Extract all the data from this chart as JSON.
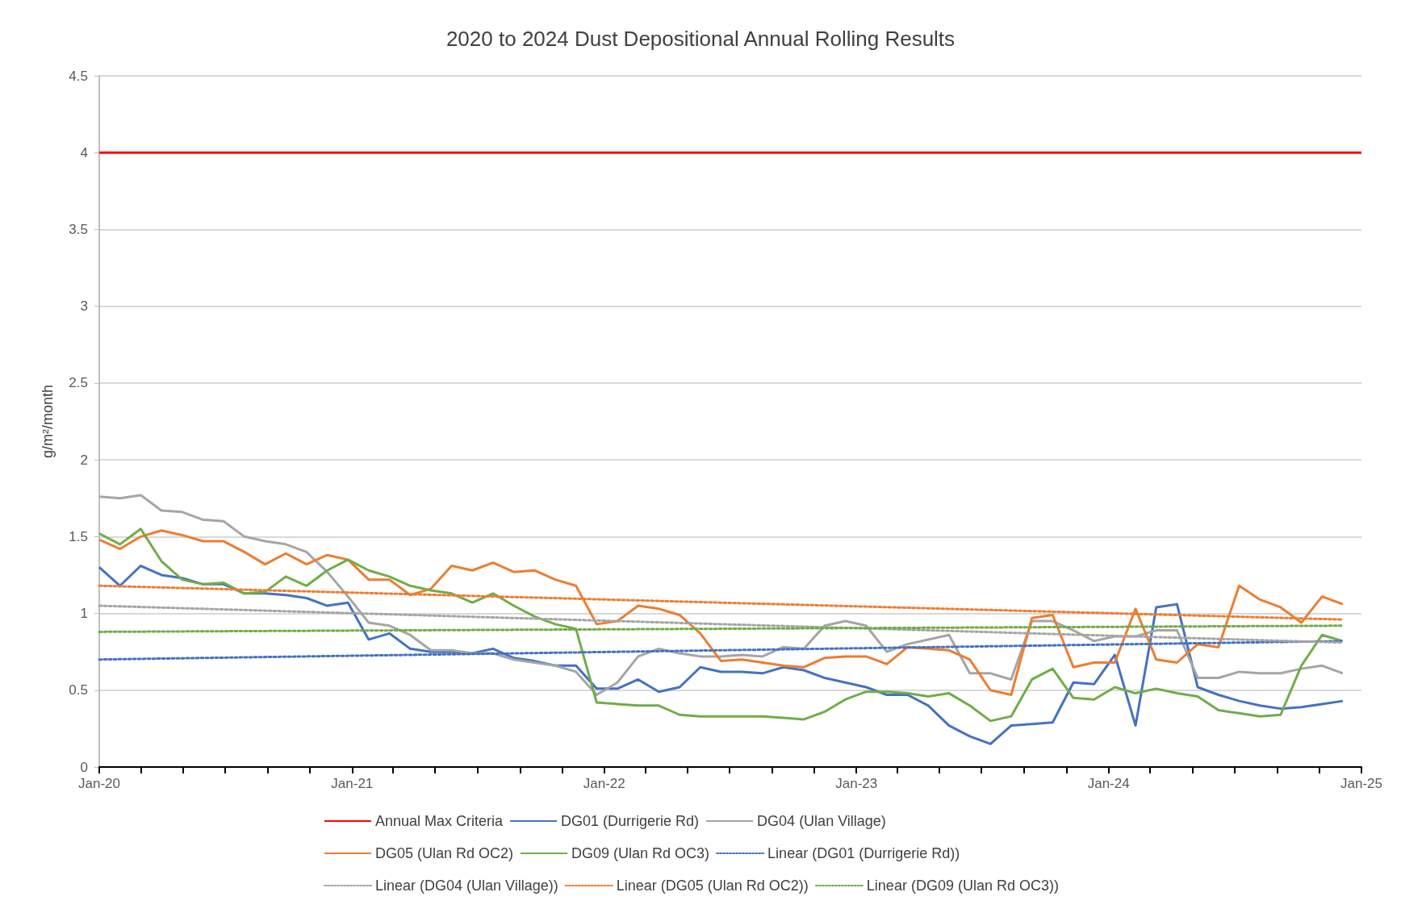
{
  "chart_data": {
    "type": "line",
    "title": "2020 to 2024 Dust Depositional Annual Rolling Results",
    "ylabel": "g/m²/month",
    "x": [
      "2020-01-01",
      "2020-01-31",
      "2020-03-01",
      "2020-03-31",
      "2020-04-30",
      "2020-05-30",
      "2020-06-29",
      "2020-07-29",
      "2020-08-28",
      "2020-09-27",
      "2020-10-27",
      "2020-11-26",
      "2020-12-26",
      "2021-01-25",
      "2021-02-24",
      "2021-03-26",
      "2021-04-25",
      "2021-05-25",
      "2021-06-24",
      "2021-07-24",
      "2021-08-23",
      "2021-09-22",
      "2021-10-22",
      "2021-11-21",
      "2021-12-21",
      "2022-01-20",
      "2022-02-19",
      "2022-03-21",
      "2022-04-20",
      "2022-05-20",
      "2022-06-19",
      "2022-07-19",
      "2022-08-18",
      "2022-09-17",
      "2022-10-17",
      "2022-11-16",
      "2022-12-16",
      "2023-01-15",
      "2023-02-14",
      "2023-03-16",
      "2023-04-15",
      "2023-05-15",
      "2023-06-14",
      "2023-07-14",
      "2023-08-13",
      "2023-09-12",
      "2023-10-12",
      "2023-11-11",
      "2023-12-11",
      "2024-01-10",
      "2024-02-09",
      "2024-03-10",
      "2024-04-09",
      "2024-05-09",
      "2024-06-08",
      "2024-07-08",
      "2024-08-07",
      "2024-09-06",
      "2024-10-06",
      "2024-11-05",
      "2024-12-05"
    ],
    "series": [
      {
        "name": "Annual Max Criteria",
        "color": "#ff0000",
        "x": [
          "2020-01-01",
          "2025-01-01"
        ],
        "values": [
          4,
          4
        ]
      },
      {
        "name": "DG01 (Durrigerie Rd)",
        "color": "#4472c4",
        "values": [
          1.3,
          1.18,
          1.31,
          1.25,
          1.23,
          1.19,
          1.19,
          1.13,
          1.13,
          1.12,
          1.1,
          1.05,
          1.07,
          0.83,
          0.87,
          0.77,
          0.75,
          0.75,
          0.74,
          0.77,
          0.71,
          0.69,
          0.66,
          0.66,
          0.51,
          0.51,
          0.57,
          0.49,
          0.52,
          0.65,
          0.62,
          0.62,
          0.61,
          0.65,
          0.63,
          0.58,
          0.55,
          0.52,
          0.47,
          0.47,
          0.4,
          0.27,
          0.2,
          0.15,
          0.27,
          0.28,
          0.29,
          0.55,
          0.54,
          0.73,
          0.27,
          1.04,
          1.06,
          0.52,
          0.47,
          0.43,
          0.4,
          0.38,
          0.39,
          0.41,
          0.43
        ]
      },
      {
        "name": "DG04 (Ulan Village)",
        "color": "#a5a5a5",
        "values": [
          1.76,
          1.75,
          1.77,
          1.67,
          1.66,
          1.61,
          1.6,
          1.5,
          1.47,
          1.45,
          1.4,
          1.27,
          1.11,
          0.94,
          0.92,
          0.86,
          0.76,
          0.76,
          0.74,
          0.74,
          0.7,
          0.68,
          0.66,
          0.62,
          0.47,
          0.55,
          0.72,
          0.77,
          0.74,
          0.72,
          0.72,
          0.73,
          0.72,
          0.78,
          0.77,
          0.92,
          0.95,
          0.92,
          0.75,
          0.8,
          0.83,
          0.86,
          0.61,
          0.61,
          0.57,
          0.95,
          0.95,
          0.89,
          0.82,
          0.85,
          0.85,
          0.89,
          0.89,
          0.58,
          0.58,
          0.62,
          0.61,
          0.61,
          0.64,
          0.66,
          0.61
        ]
      },
      {
        "name": "DG05 (Ulan Rd OC2)",
        "color": "#ed7d31",
        "values": [
          1.48,
          1.42,
          1.5,
          1.54,
          1.51,
          1.47,
          1.47,
          1.4,
          1.32,
          1.39,
          1.32,
          1.38,
          1.35,
          1.22,
          1.22,
          1.12,
          1.16,
          1.31,
          1.28,
          1.33,
          1.27,
          1.28,
          1.22,
          1.18,
          0.93,
          0.95,
          1.05,
          1.03,
          0.99,
          0.87,
          0.69,
          0.7,
          0.68,
          0.66,
          0.65,
          0.71,
          0.72,
          0.72,
          0.67,
          0.78,
          0.77,
          0.76,
          0.7,
          0.5,
          0.47,
          0.97,
          0.99,
          0.65,
          0.68,
          0.68,
          1.03,
          0.7,
          0.68,
          0.8,
          0.78,
          1.18,
          1.09,
          1.04,
          0.94,
          1.11,
          1.06
        ]
      },
      {
        "name": "DG09 (Ulan Rd OC3)",
        "color": "#70ad47",
        "values": [
          1.52,
          1.45,
          1.55,
          1.34,
          1.22,
          1.19,
          1.2,
          1.13,
          1.14,
          1.24,
          1.18,
          1.28,
          1.35,
          1.28,
          1.24,
          1.18,
          1.15,
          1.13,
          1.07,
          1.13,
          1.05,
          0.98,
          0.93,
          0.9,
          0.42,
          0.41,
          0.4,
          0.4,
          0.34,
          0.33,
          0.33,
          0.33,
          0.33,
          0.32,
          0.31,
          0.36,
          0.44,
          0.49,
          0.49,
          0.48,
          0.46,
          0.48,
          0.4,
          0.3,
          0.33,
          0.57,
          0.64,
          0.45,
          0.44,
          0.52,
          0.48,
          0.51,
          0.48,
          0.46,
          0.37,
          0.35,
          0.33,
          0.34,
          0.66,
          0.86,
          0.82
        ]
      },
      {
        "name": "Linear (DG01 (Durrigerie Rd))",
        "color": "#4472c4",
        "line_style": "dotted",
        "x": [
          "2020-01-01",
          "2024-12-05"
        ],
        "values": [
          0.7,
          0.82
        ]
      },
      {
        "name": "Linear (DG04 (Ulan Village))",
        "color": "#a5a5a5",
        "line_style": "dotted",
        "x": [
          "2020-01-01",
          "2024-12-05"
        ],
        "values": [
          1.05,
          0.81
        ]
      },
      {
        "name": "Linear (DG05 (Ulan Rd OC2))",
        "color": "#ed7d31",
        "line_style": "dotted",
        "x": [
          "2020-01-01",
          "2024-12-05"
        ],
        "values": [
          1.18,
          0.96
        ]
      },
      {
        "name": "Linear (DG09 (Ulan Rd OC3))",
        "color": "#70ad47",
        "line_style": "dotted",
        "x": [
          "2020-01-01",
          "2024-12-05"
        ],
        "values": [
          0.88,
          0.92
        ]
      }
    ],
    "xlim": [
      "2020-01-01",
      "2025-01-01"
    ],
    "xticks": [
      {
        "value": "2020-01",
        "label": "Jan-20"
      },
      {
        "value": "2020-03",
        "label": null
      },
      {
        "value": "2020-05",
        "label": null
      },
      {
        "value": "2020-07",
        "label": null
      },
      {
        "value": "2020-09",
        "label": null
      },
      {
        "value": "2020-11",
        "label": null
      },
      {
        "value": "2021-01",
        "label": "Jan-21"
      },
      {
        "value": "2021-03",
        "label": null
      },
      {
        "value": "2021-05",
        "label": null
      },
      {
        "value": "2021-07",
        "label": null
      },
      {
        "value": "2021-09",
        "label": null
      },
      {
        "value": "2021-11",
        "label": null
      },
      {
        "value": "2022-01",
        "label": "Jan-22"
      },
      {
        "value": "2022-03",
        "label": null
      },
      {
        "value": "2022-05",
        "label": null
      },
      {
        "value": "2022-07",
        "label": null
      },
      {
        "value": "2022-09",
        "label": null
      },
      {
        "value": "2022-11",
        "label": null
      },
      {
        "value": "2023-01",
        "label": "Jan-23"
      },
      {
        "value": "2023-03",
        "label": null
      },
      {
        "value": "2023-05",
        "label": null
      },
      {
        "value": "2023-07",
        "label": null
      },
      {
        "value": "2023-09",
        "label": null
      },
      {
        "value": "2023-11",
        "label": null
      },
      {
        "value": "2024-01",
        "label": "Jan-24"
      },
      {
        "value": "2024-03",
        "label": null
      },
      {
        "value": "2024-05",
        "label": null
      },
      {
        "value": "2024-07",
        "label": null
      },
      {
        "value": "2024-09",
        "label": null
      },
      {
        "value": "2024-11",
        "label": null
      },
      {
        "value": "2025-01",
        "label": "Jan-25"
      }
    ],
    "ylim": [
      0,
      4.5
    ],
    "yticks": [
      0,
      0.5,
      1,
      1.5,
      2,
      2.5,
      3,
      3.5,
      4,
      4.5
    ],
    "grid": "y",
    "legend": "bottom",
    "marker": "none"
  }
}
